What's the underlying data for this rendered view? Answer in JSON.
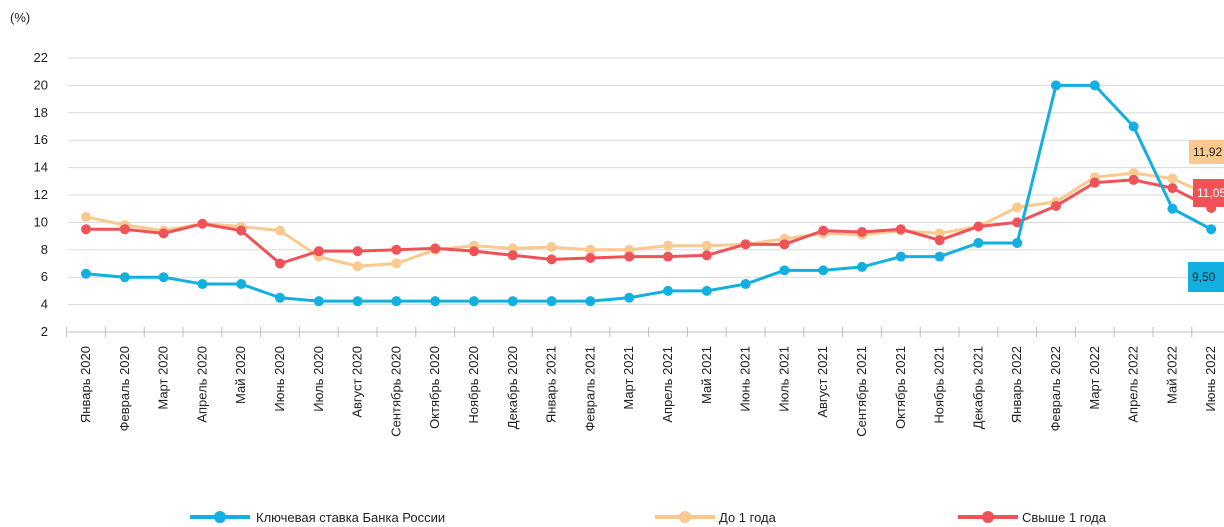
{
  "chart_data": {
    "type": "line",
    "unit_label": "(%)",
    "ylim": [
      2,
      22
    ],
    "yticks": [
      2,
      4,
      6,
      8,
      10,
      12,
      14,
      16,
      18,
      20,
      22
    ],
    "grid": true,
    "legend_placement": "bottom",
    "categories": [
      "Январь 2020",
      "Февраль 2020",
      "Март 2020",
      "Апрель 2020",
      "Май   2020",
      "Июнь 2020",
      "Июль 2020",
      "Август 2020",
      "Сентябрь 2020",
      "Октябрь 2020",
      "Ноябрь 2020",
      "Декабрь 2020",
      "Январь 2021",
      "Февраль 2021",
      "Март 2021",
      "Апрель 2021",
      "Май   2021",
      "Июнь 2021",
      "Июль 2021",
      "Август 2021",
      "Сентябрь 2021",
      "Октябрь 2021",
      "Ноябрь 2021",
      "Декабрь 2021",
      "Январь 2022",
      "Февраль 2022",
      "Март 2022",
      "Апрель 2022",
      "Май   2022",
      "Июнь 2022"
    ],
    "series": [
      {
        "name": "Ключевая ставка Банка России",
        "color": "#12b0e0",
        "values": [
          6.25,
          6.0,
          6.0,
          5.5,
          5.5,
          4.5,
          4.25,
          4.25,
          4.25,
          4.25,
          4.25,
          4.25,
          4.25,
          4.25,
          4.5,
          5.0,
          5.0,
          5.5,
          6.5,
          6.5,
          6.75,
          7.5,
          7.5,
          8.5,
          8.5,
          20.0,
          20.0,
          17.0,
          11.0,
          9.5
        ],
        "end_label": "9,50",
        "end_label_color": "#12b0e0"
      },
      {
        "name": "До 1 года",
        "color": "#f9c98f",
        "values": [
          10.4,
          9.8,
          9.4,
          9.9,
          9.7,
          9.4,
          7.5,
          6.8,
          7.0,
          8.0,
          8.3,
          8.1,
          8.2,
          8.0,
          8.0,
          8.3,
          8.3,
          8.4,
          8.8,
          9.2,
          9.1,
          9.4,
          9.2,
          9.7,
          11.1,
          11.5,
          13.3,
          13.6,
          13.2,
          11.92
        ],
        "end_label": "11,92",
        "end_label_color": "#f9c98f"
      },
      {
        "name": "Свыше 1 года",
        "color": "#ef5358",
        "values": [
          9.5,
          9.5,
          9.2,
          9.9,
          9.4,
          7.0,
          7.9,
          7.9,
          8.0,
          8.1,
          7.9,
          7.6,
          7.3,
          7.4,
          7.5,
          7.5,
          7.6,
          8.4,
          8.4,
          9.4,
          9.3,
          9.5,
          8.7,
          9.7,
          10.0,
          11.2,
          12.9,
          13.1,
          12.5,
          11.05
        ],
        "end_label": "11,05",
        "end_label_color": "#ef5358"
      }
    ]
  }
}
